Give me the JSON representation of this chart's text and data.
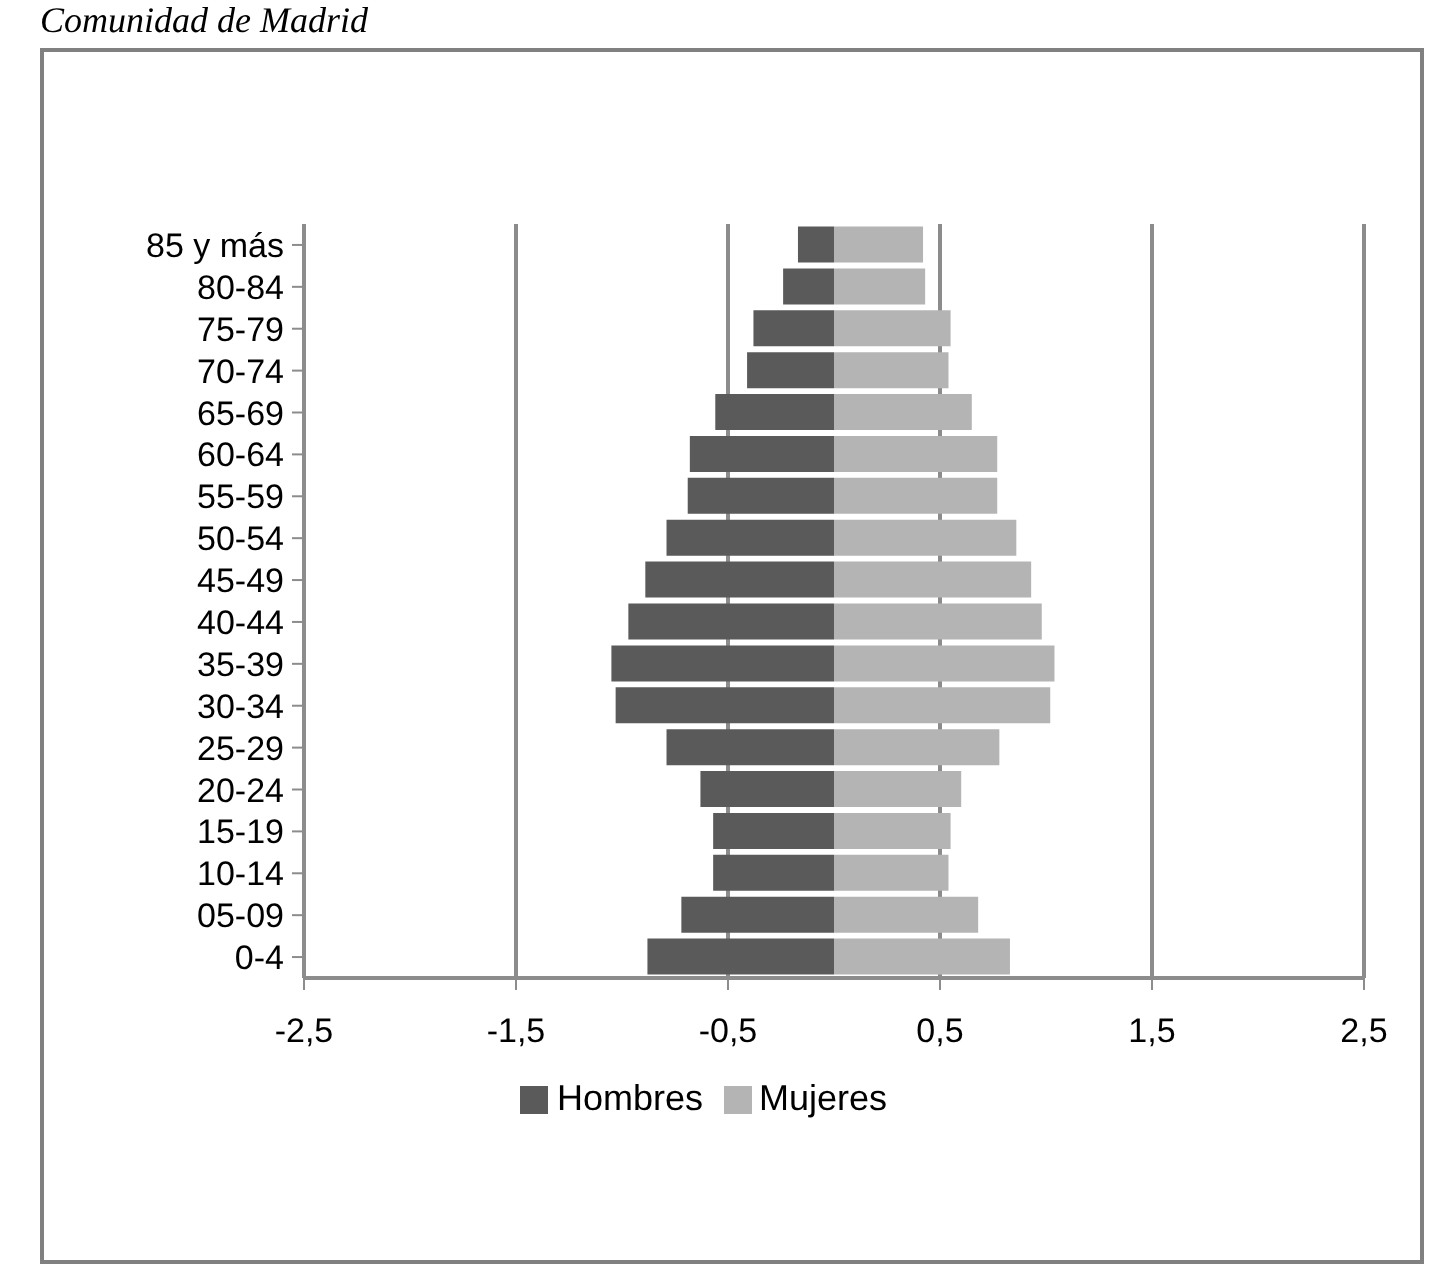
{
  "chart_data": {
    "type": "bar",
    "title": "Comunidad de Madrid",
    "orientation": "horizontal",
    "stacked": true,
    "categories": [
      "85 y más",
      "80-84",
      "75-79",
      "70-74",
      "65-69",
      "60-64",
      "55-59",
      "50-54",
      "45-49",
      "40-44",
      "35-39",
      "30-34",
      "25-29",
      "20-24",
      "15-19",
      "10-14",
      "05-09",
      "0-4"
    ],
    "series": [
      {
        "name": "Hombres",
        "color": "#5a5a5a",
        "values": [
          -0.17,
          -0.24,
          -0.38,
          -0.41,
          -0.56,
          -0.68,
          -0.69,
          -0.79,
          -0.89,
          -0.97,
          -1.05,
          -1.03,
          -0.79,
          -0.63,
          -0.57,
          -0.57,
          -0.72,
          -0.88
        ]
      },
      {
        "name": "Mujeres",
        "color": "#b4b4b4",
        "values": [
          0.42,
          0.43,
          0.55,
          0.54,
          0.65,
          0.77,
          0.77,
          0.86,
          0.93,
          0.98,
          1.04,
          1.02,
          0.78,
          0.6,
          0.55,
          0.54,
          0.68,
          0.83
        ]
      }
    ],
    "xlim": [
      -2.5,
      2.5
    ],
    "xticks": [
      {
        "value": -2.5,
        "label": "-2,5"
      },
      {
        "value": -1.5,
        "label": "-1,5"
      },
      {
        "value": -0.5,
        "label": "-0,5"
      },
      {
        "value": 0.5,
        "label": "0,5"
      },
      {
        "value": 1.5,
        "label": "1,5"
      },
      {
        "value": 2.5,
        "label": "2,5"
      }
    ],
    "grid": "x",
    "legend": "bottom"
  }
}
